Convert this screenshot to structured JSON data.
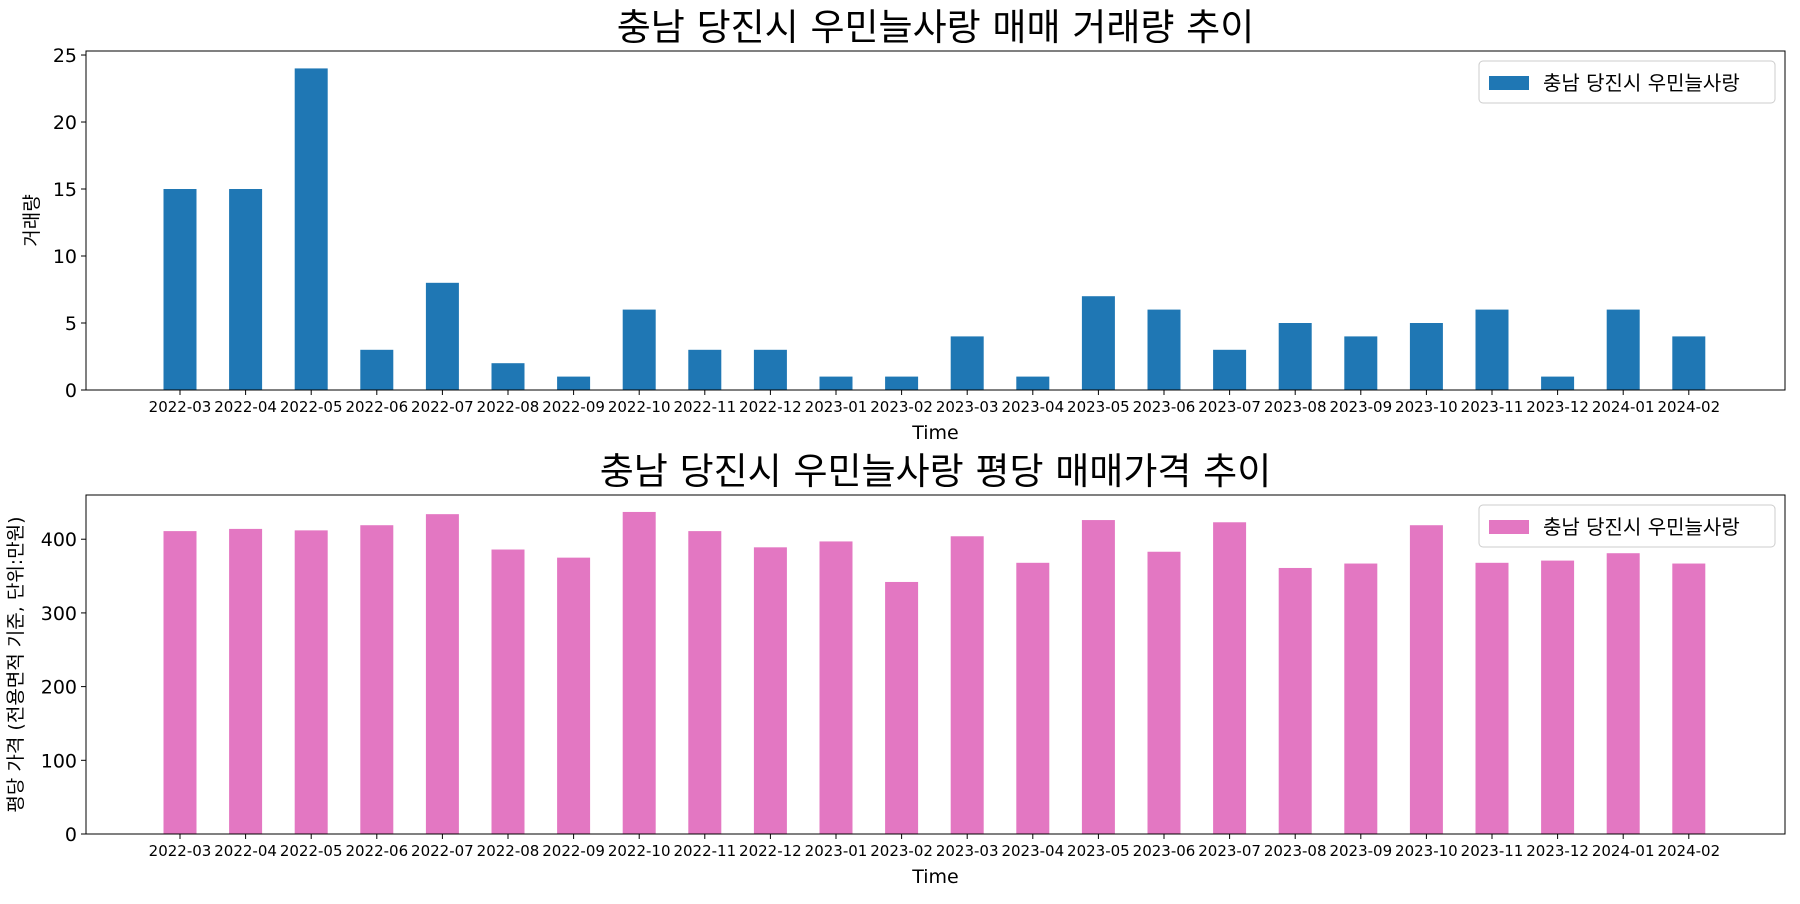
{
  "chart_data": [
    {
      "type": "bar",
      "title": "충남 당진시 우민늘사랑 매매 거래량 추이",
      "xlabel": "Time",
      "ylabel": "거래량",
      "ylim": [
        0,
        25.3
      ],
      "yticks": [
        0,
        5,
        10,
        15,
        20,
        25
      ],
      "legend_position": "top-right",
      "grid": false,
      "categories": [
        "2022-03",
        "2022-04",
        "2022-05",
        "2022-06",
        "2022-07",
        "2022-08",
        "2022-09",
        "2022-10",
        "2022-11",
        "2022-12",
        "2023-01",
        "2023-02",
        "2023-03",
        "2023-04",
        "2023-05",
        "2023-06",
        "2023-07",
        "2023-08",
        "2023-09",
        "2023-10",
        "2023-11",
        "2023-12",
        "2024-01",
        "2024-02"
      ],
      "series": [
        {
          "name": "충남 당진시 우민늘사랑",
          "color": "#1f77b4",
          "values": [
            15,
            15,
            24,
            3,
            8,
            2,
            1,
            6,
            3,
            3,
            1,
            1,
            4,
            1,
            7,
            6,
            3,
            5,
            4,
            5,
            6,
            1,
            6,
            4
          ]
        }
      ]
    },
    {
      "type": "bar",
      "title": "충남 당진시 우민늘사랑 평당 매매가격 추이",
      "xlabel": "Time",
      "ylabel": "평당 가격 (전용면적 기준, 단위:만원)",
      "ylim": [
        0,
        460
      ],
      "yticks": [
        0,
        100,
        200,
        300,
        400
      ],
      "legend_position": "top-right",
      "grid": false,
      "categories": [
        "2022-03",
        "2022-04",
        "2022-05",
        "2022-06",
        "2022-07",
        "2022-08",
        "2022-09",
        "2022-10",
        "2022-11",
        "2022-12",
        "2023-01",
        "2023-02",
        "2023-03",
        "2023-04",
        "2023-05",
        "2023-06",
        "2023-07",
        "2023-08",
        "2023-09",
        "2023-10",
        "2023-11",
        "2023-12",
        "2024-01",
        "2024-02"
      ],
      "series": [
        {
          "name": "충남 당진시 우민늘사랑",
          "color": "#e377c2",
          "values": [
            411,
            414,
            412,
            419,
            434,
            386,
            375,
            437,
            411,
            389,
            397,
            342,
            404,
            368,
            426,
            383,
            423,
            361,
            367,
            419,
            368,
            371,
            381,
            367
          ]
        }
      ]
    }
  ]
}
